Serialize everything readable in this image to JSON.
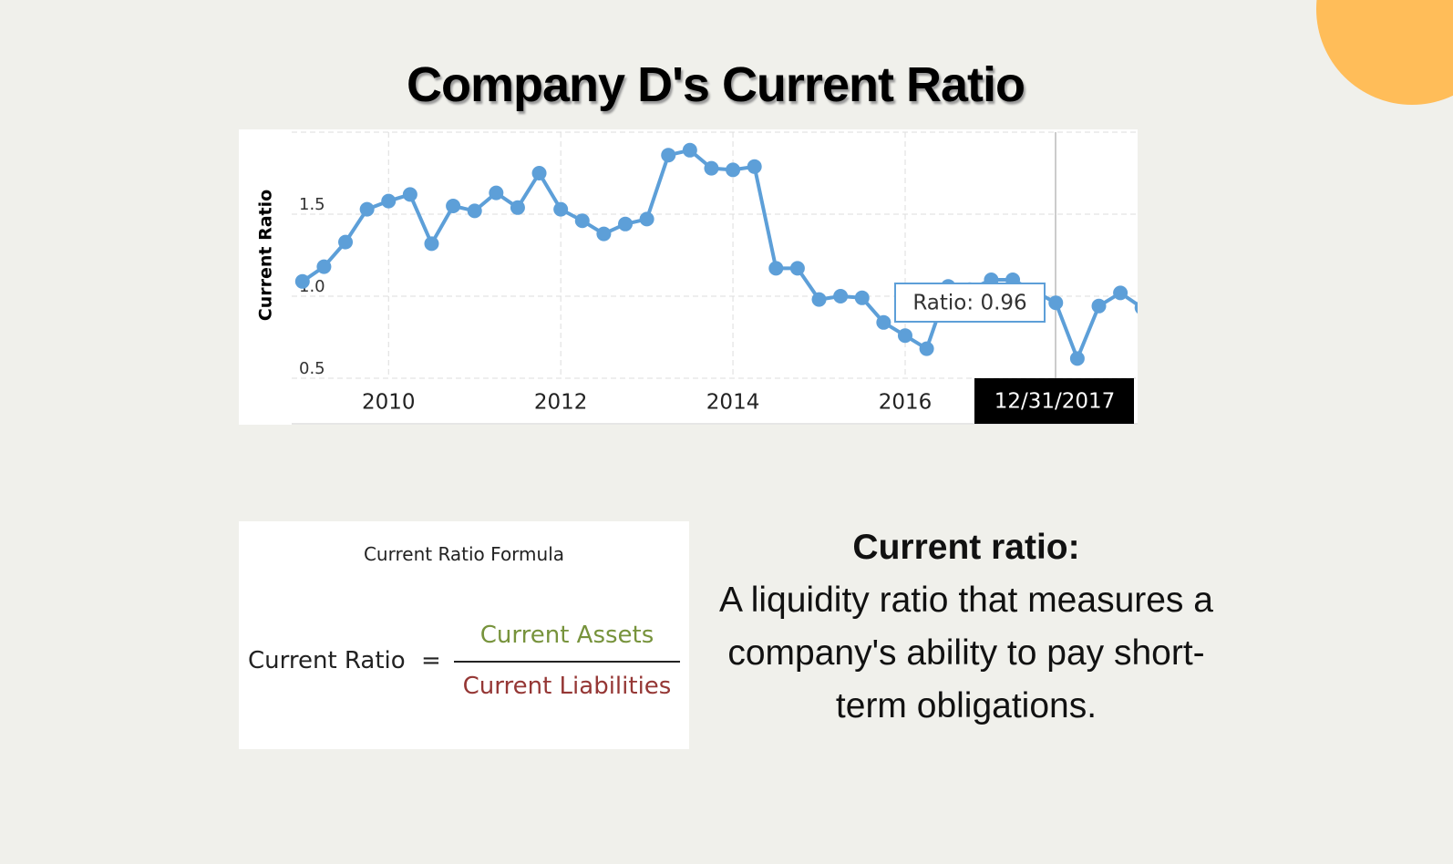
{
  "chart_data": {
    "type": "line",
    "title": "Company D's Current Ratio",
    "y_label": "Current Ratio",
    "x": [
      2009.0,
      2009.25,
      2009.5,
      2009.75,
      2010.0,
      2010.25,
      2010.5,
      2010.75,
      2011.0,
      2011.25,
      2011.5,
      2011.75,
      2012.0,
      2012.25,
      2012.5,
      2012.75,
      2013.0,
      2013.25,
      2013.5,
      2013.75,
      2014.0,
      2014.25,
      2014.5,
      2014.75,
      2015.0,
      2015.25,
      2015.5,
      2015.75,
      2016.0,
      2016.25,
      2016.5,
      2016.75,
      2017.0,
      2017.25,
      2017.5,
      2017.75,
      2018.0,
      2018.25,
      2018.5,
      2018.75
    ],
    "series": [
      {
        "name": "Ratio",
        "color": "#5d9fd8",
        "values": [
          1.09,
          1.18,
          1.33,
          1.53,
          1.58,
          1.62,
          1.32,
          1.55,
          1.52,
          1.63,
          1.54,
          1.75,
          1.53,
          1.46,
          1.38,
          1.44,
          1.47,
          1.86,
          1.89,
          1.78,
          1.77,
          1.79,
          1.17,
          1.17,
          0.98,
          1.0,
          0.99,
          0.84,
          0.76,
          0.68,
          1.06,
          1.04,
          1.1,
          1.1,
          1.03,
          0.96,
          0.62,
          0.94,
          1.02,
          0.93
        ]
      }
    ],
    "xlim": [
      2008.875,
      2018.7
    ],
    "ylim": [
      0.5,
      2.0
    ],
    "xticks": [
      2010,
      2012,
      2014,
      2016
    ],
    "yticks": [
      0.5,
      {
        "value": 1,
        "label": "1.0"
      },
      1.5
    ],
    "grid": true,
    "tooltip": {
      "label": "Ratio: 0.96",
      "date": "12/31/2017"
    }
  },
  "formula": {
    "title": "Current Ratio Formula",
    "left": "Current Ratio",
    "equals": "=",
    "numerator": "Current Assets",
    "denominator": "Current Liabilities"
  },
  "definition": {
    "term": "Current ratio:",
    "text": "A liquidity ratio that measures a company's ability to pay short-term obligations."
  }
}
